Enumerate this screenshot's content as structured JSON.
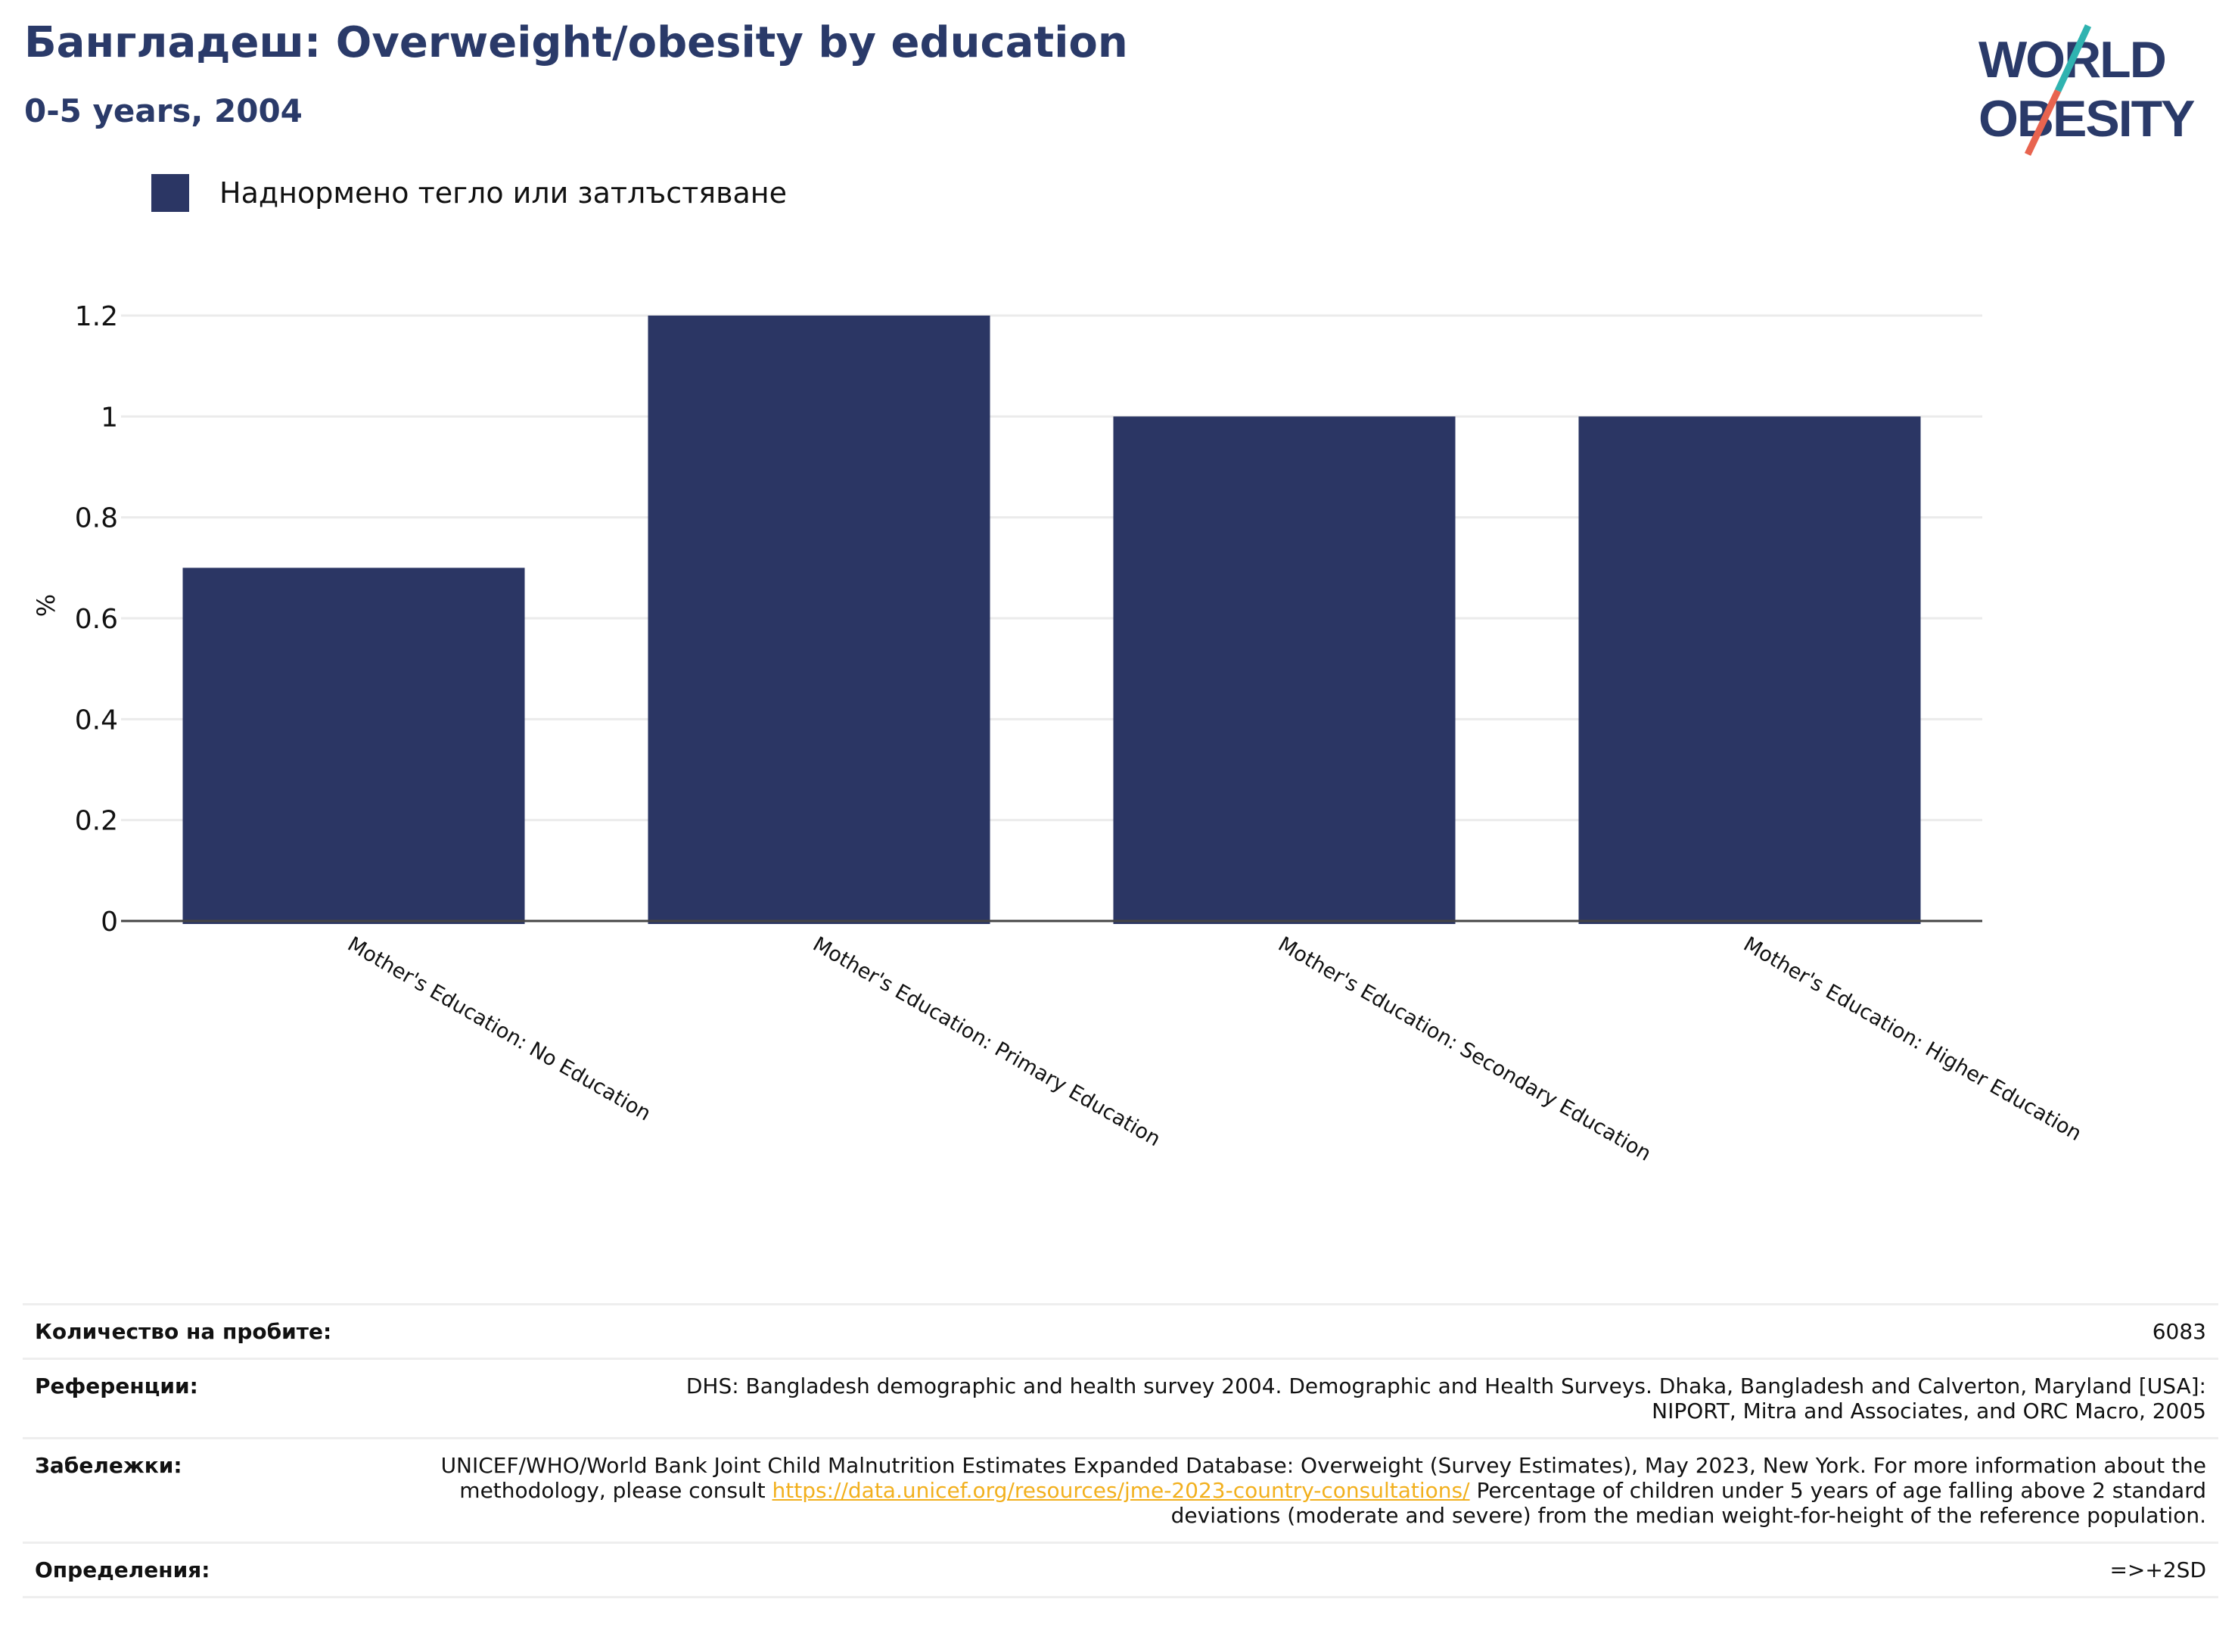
{
  "header": {
    "title": "Бангладеш: Overweight/obesity by education",
    "subtitle": "0-5 years, 2004"
  },
  "logo": {
    "line1": "WORLD",
    "line2": "OBESITY"
  },
  "colors": {
    "bar": "#2b3664",
    "title": "#2a3a69",
    "link": "#f2b01e",
    "grid": "#ebebeb"
  },
  "chart_data": {
    "type": "bar",
    "categories": [
      "Mother's Education: No Education",
      "Mother's Education: Primary Education",
      "Mother's Education: Secondary Education",
      "Mother's Education: Higher Education"
    ],
    "series": [
      {
        "name": "Наднормено тегло или затлъстяване",
        "values": [
          0.7,
          1.2,
          1.0,
          1.0
        ]
      }
    ],
    "ylabel": "%",
    "ylim": [
      0,
      1.2
    ],
    "yticks": [
      "0",
      "0.2",
      "0.4",
      "0.6",
      "0.8",
      "1",
      "1.2"
    ],
    "grid": true,
    "legend": "top-left"
  },
  "meta": {
    "sample_label": "Количество на пробите:",
    "sample_value": "6083",
    "references_label": "Референции:",
    "references_value": "DHS: Bangladesh demographic and health survey 2004. Demographic and Health Surveys. Dhaka, Bangladesh and Calverton, Maryland [USA]: NIPORT, Mitra and Associates, and ORC Macro, 2005",
    "notes_label": "Забележки:",
    "notes_before": "UNICEF/WHO/World Bank Joint Child Malnutrition Estimates Expanded Database: Overweight (Survey Estimates), May 2023, New York. For more information about the methodology, please consult ",
    "notes_link": "https://data.unicef.org/resources/jme-2023-country-consultations/",
    "notes_after": " Percentage of children under 5 years of age falling above 2 standard deviations (moderate and severe) from the median weight-for-height of the reference population.",
    "definitions_label": "Определения:",
    "definitions_value": "=>+2SD"
  }
}
